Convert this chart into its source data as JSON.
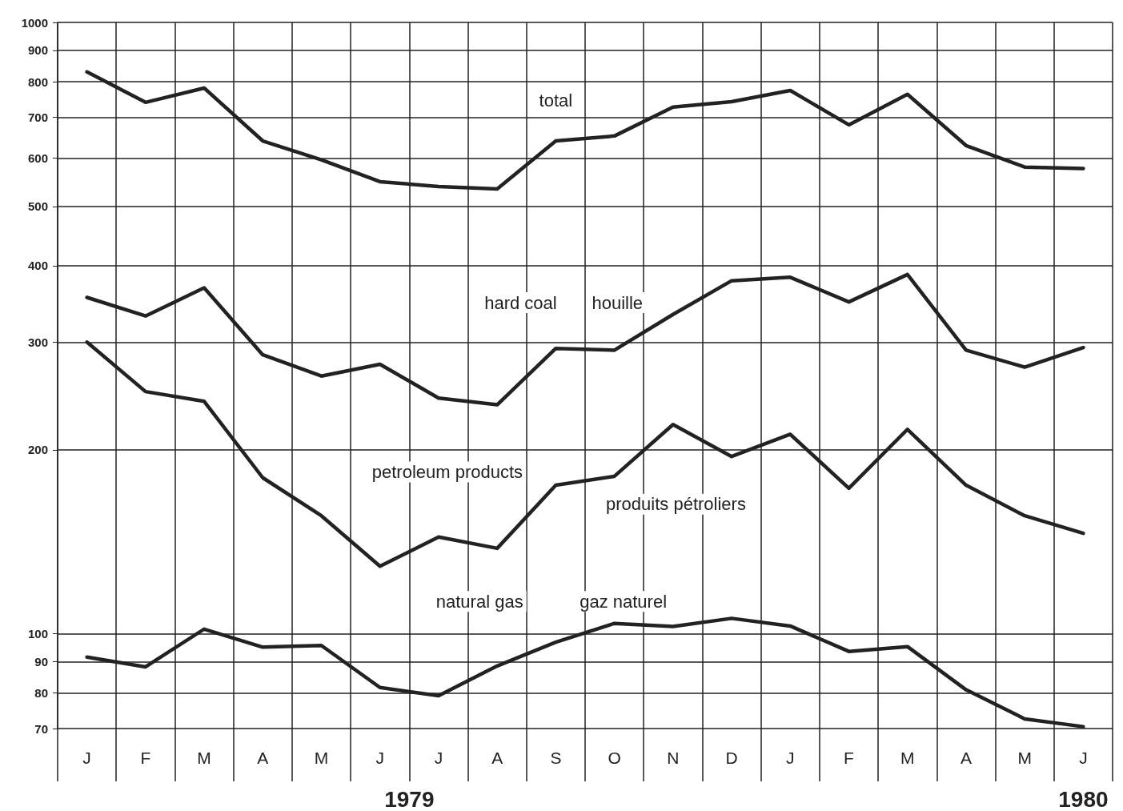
{
  "chart_data": {
    "type": "line",
    "categories": [
      "J",
      "F",
      "M",
      "A",
      "M",
      "J",
      "J",
      "A",
      "S",
      "O",
      "N",
      "D",
      "J",
      "F",
      "M",
      "A",
      "M",
      "J"
    ],
    "series": [
      {
        "color": "#222222",
        "values": [
          830,
          740,
          781,
          640,
          596,
          549,
          539,
          534,
          640,
          652,
          727,
          742,
          774,
          680,
          763,
          629,
          580,
          577
        ]
      },
      {
        "color": "#222222",
        "values": [
          355,
          331,
          368,
          286,
          264,
          276,
          243,
          237,
          293,
          291,
          333,
          378,
          383,
          349,
          387,
          291,
          273,
          294
        ]
      },
      {
        "color": "#222222",
        "values": [
          300,
          249,
          240,
          180,
          156,
          129,
          144,
          138,
          175,
          181,
          220,
          195,
          212,
          173,
          216,
          175,
          156,
          146
        ]
      },
      {
        "color": "#222222",
        "values": [
          91.6,
          88.3,
          101.8,
          95.1,
          95.7,
          81.7,
          79.2,
          88.6,
          96.9,
          104,
          102.8,
          106,
          103,
          93.6,
          95.3,
          81,
          72.6,
          70.5
        ]
      }
    ],
    "log": true,
    "ylim": [
      70,
      1000
    ],
    "yticks": [
      70,
      80,
      90,
      100,
      200,
      300,
      400,
      500,
      600,
      700,
      800,
      900,
      1000
    ],
    "grid": true,
    "marker": "none",
    "line_style": "solid",
    "annotations": [
      "total",
      "hard coal",
      "houille",
      "petroleum products",
      "produits pétroliers",
      "natural gas",
      "gaz naturel",
      "1979",
      "1980"
    ]
  }
}
